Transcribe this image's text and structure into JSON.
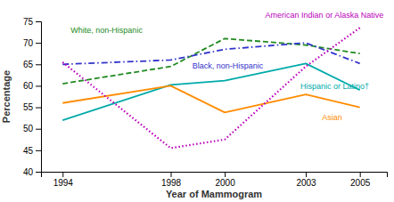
{
  "chart_data": {
    "type": "line",
    "xlabel": "Year of Mammogram",
    "ylabel": "Percentage",
    "x": [
      1994,
      1998,
      2000,
      2003,
      2005
    ],
    "series": [
      {
        "name": "White, non-Hispanic",
        "color": "#228B22",
        "line_style": "dashed",
        "values": [
          60.5,
          64.5,
          71.0,
          69.5,
          67.5
        ]
      },
      {
        "name": "Black, non-Hispanic",
        "color": "#3333CC",
        "line_style": "dashdot",
        "values": [
          65.0,
          66.0,
          68.5,
          70.0,
          65.2
        ]
      },
      {
        "name": "Hispanic or Latino†",
        "color": "#00AAAA",
        "line_style": "solid",
        "values": [
          52.0,
          60.2,
          61.2,
          65.2,
          59.0
        ]
      },
      {
        "name": "Asian",
        "color": "#FF8C00",
        "line_style": "solid",
        "values": [
          56.0,
          60.0,
          53.8,
          58.0,
          55.0
        ]
      },
      {
        "name": "American Indian or Alaska Native",
        "color": "#BB00BB",
        "line_style": "dotted",
        "values": [
          65.5,
          45.5,
          47.5,
          64.5,
          73.5
        ]
      }
    ],
    "annotations": [
      {
        "text": "White, non-Hispanic",
        "x": 1994.3,
        "y": 72.8,
        "color": "#228B22"
      },
      {
        "text": "Black, non-Hispanic",
        "x": 1998.8,
        "y": 64.5,
        "color": "#3333CC"
      },
      {
        "text": "Hispanic or Latino†",
        "x": 2002.8,
        "y": 59.8,
        "color": "#00AAAA"
      },
      {
        "text": "Asian",
        "x": 2003.6,
        "y": 52.5,
        "color": "#FF8C00"
      },
      {
        "text": "American Indian or Alaska Native",
        "x": 2001.5,
        "y": 76.3,
        "color": "#BB00BB"
      }
    ],
    "xlim": [
      1993.2,
      2006.0
    ],
    "ylim": [
      40,
      75
    ],
    "xticks": [
      1994,
      1998,
      2000,
      2003,
      2005
    ],
    "yticks": [
      40,
      45,
      50,
      55,
      60,
      65,
      70,
      75
    ],
    "grid": false
  }
}
